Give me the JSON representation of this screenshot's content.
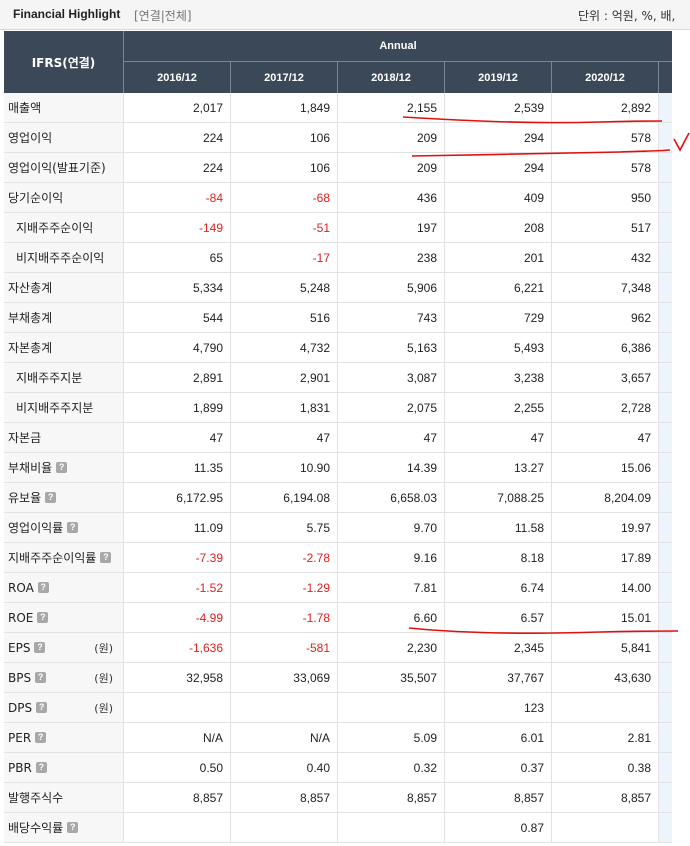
{
  "header": {
    "title": "Financial Highlight",
    "subtitle": "[연결|전체]",
    "unit": "단위 : 억원, %, 배,"
  },
  "table": {
    "label_header": "IFRS(연결)",
    "group_header": "Annual",
    "years": [
      "2016/12",
      "2017/12",
      "2018/12",
      "2019/12",
      "2020/12"
    ],
    "rows": [
      {
        "label": "매출액",
        "sub": false,
        "help": false,
        "unit": "",
        "values": [
          "2,017",
          "1,849",
          "2,155",
          "2,539",
          "2,892"
        ]
      },
      {
        "label": "영업이익",
        "sub": false,
        "help": false,
        "unit": "",
        "values": [
          "224",
          "106",
          "209",
          "294",
          "578"
        ]
      },
      {
        "label": "영업이익(발표기준)",
        "sub": false,
        "help": false,
        "unit": "",
        "values": [
          "224",
          "106",
          "209",
          "294",
          "578"
        ]
      },
      {
        "label": "당기순이익",
        "sub": false,
        "help": false,
        "unit": "",
        "values": [
          "-84",
          "-68",
          "436",
          "409",
          "950"
        ]
      },
      {
        "label": "지배주주순이익",
        "sub": true,
        "help": false,
        "unit": "",
        "values": [
          "-149",
          "-51",
          "197",
          "208",
          "517"
        ]
      },
      {
        "label": "비지배주주순이익",
        "sub": true,
        "help": false,
        "unit": "",
        "values": [
          "65",
          "-17",
          "238",
          "201",
          "432"
        ]
      },
      {
        "label": "자산총계",
        "sub": false,
        "help": false,
        "unit": "",
        "values": [
          "5,334",
          "5,248",
          "5,906",
          "6,221",
          "7,348"
        ]
      },
      {
        "label": "부채총계",
        "sub": false,
        "help": false,
        "unit": "",
        "values": [
          "544",
          "516",
          "743",
          "729",
          "962"
        ]
      },
      {
        "label": "자본총계",
        "sub": false,
        "help": false,
        "unit": "",
        "values": [
          "4,790",
          "4,732",
          "5,163",
          "5,493",
          "6,386"
        ]
      },
      {
        "label": "지배주주지분",
        "sub": true,
        "help": false,
        "unit": "",
        "values": [
          "2,891",
          "2,901",
          "3,087",
          "3,238",
          "3,657"
        ]
      },
      {
        "label": "비지배주주지분",
        "sub": true,
        "help": false,
        "unit": "",
        "values": [
          "1,899",
          "1,831",
          "2,075",
          "2,255",
          "2,728"
        ]
      },
      {
        "label": "자본금",
        "sub": false,
        "help": false,
        "unit": "",
        "values": [
          "47",
          "47",
          "47",
          "47",
          "47"
        ]
      },
      {
        "label": "부채비율",
        "sub": false,
        "help": true,
        "unit": "",
        "values": [
          "11.35",
          "10.90",
          "14.39",
          "13.27",
          "15.06"
        ]
      },
      {
        "label": "유보율",
        "sub": false,
        "help": true,
        "unit": "",
        "values": [
          "6,172.95",
          "6,194.08",
          "6,658.03",
          "7,088.25",
          "8,204.09"
        ]
      },
      {
        "label": "영업이익률",
        "sub": false,
        "help": true,
        "unit": "",
        "values": [
          "11.09",
          "5.75",
          "9.70",
          "11.58",
          "19.97"
        ]
      },
      {
        "label": "지배주주순이익률",
        "sub": false,
        "help": true,
        "unit": "",
        "values": [
          "-7.39",
          "-2.78",
          "9.16",
          "8.18",
          "17.89"
        ]
      },
      {
        "label": "ROA",
        "sub": false,
        "help": true,
        "unit": "",
        "values": [
          "-1.52",
          "-1.29",
          "7.81",
          "6.74",
          "14.00"
        ]
      },
      {
        "label": "ROE",
        "sub": false,
        "help": true,
        "unit": "",
        "values": [
          "-4.99",
          "-1.78",
          "6.60",
          "6.57",
          "15.01"
        ]
      },
      {
        "label": "EPS",
        "sub": false,
        "help": true,
        "unit": "(원)",
        "values": [
          "-1,636",
          "-581",
          "2,230",
          "2,345",
          "5,841"
        ]
      },
      {
        "label": "BPS",
        "sub": false,
        "help": true,
        "unit": "(원)",
        "values": [
          "32,958",
          "33,069",
          "35,507",
          "37,767",
          "43,630"
        ]
      },
      {
        "label": "DPS",
        "sub": false,
        "help": true,
        "unit": "(원)",
        "values": [
          "",
          "",
          "",
          "123",
          ""
        ]
      },
      {
        "label": "PER",
        "sub": false,
        "help": true,
        "unit": "",
        "values": [
          "N/A",
          "N/A",
          "5.09",
          "6.01",
          "2.81"
        ]
      },
      {
        "label": "PBR",
        "sub": false,
        "help": true,
        "unit": "",
        "values": [
          "0.50",
          "0.40",
          "0.32",
          "0.37",
          "0.38"
        ]
      },
      {
        "label": "발행주식수",
        "sub": false,
        "help": false,
        "unit": "",
        "values": [
          "8,857",
          "8,857",
          "8,857",
          "8,857",
          "8,857"
        ]
      },
      {
        "label": "배당수익률",
        "sub": false,
        "help": true,
        "unit": "",
        "values": [
          "",
          "",
          "",
          "0.87",
          ""
        ]
      }
    ]
  },
  "help_icon_glyph": "?",
  "colors": {
    "header_bg": "#3b4858",
    "negative": "#e02020",
    "annotation": "#e01010"
  }
}
